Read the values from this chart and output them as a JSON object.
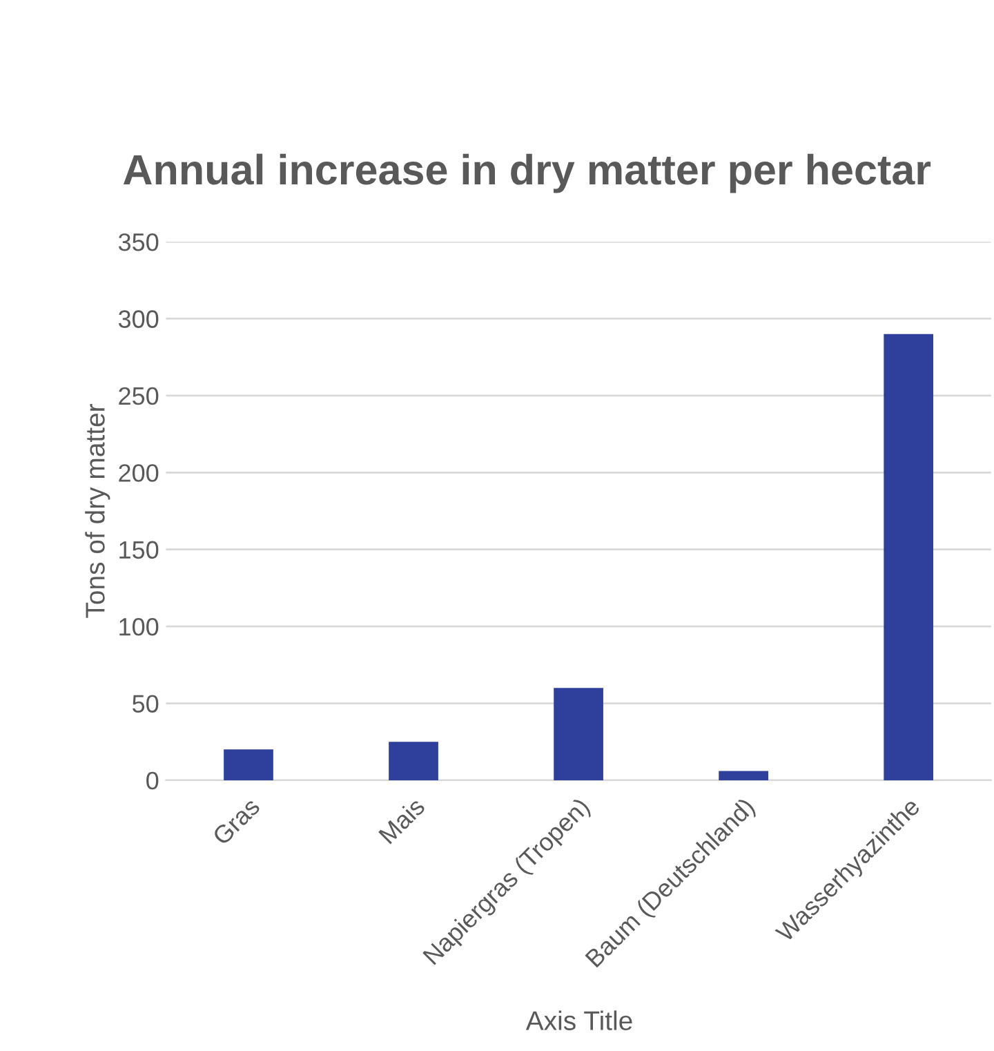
{
  "chart_data": {
    "type": "bar",
    "title": "Annual increase in dry matter per hectar",
    "xlabel": "Axis Title",
    "ylabel": "Tons of dry matter",
    "categories": [
      "Gras",
      "Mais",
      "Napiergras (Tropen)",
      "Baum (Deutschland)",
      "Wasserhyazinthe"
    ],
    "values": [
      20,
      25,
      60,
      6,
      290
    ],
    "color": "#2e3f9c",
    "ylim": [
      0,
      350
    ],
    "yticks": [
      0,
      50,
      100,
      150,
      200,
      250,
      300,
      350
    ],
    "grid": "y",
    "legend": false
  }
}
